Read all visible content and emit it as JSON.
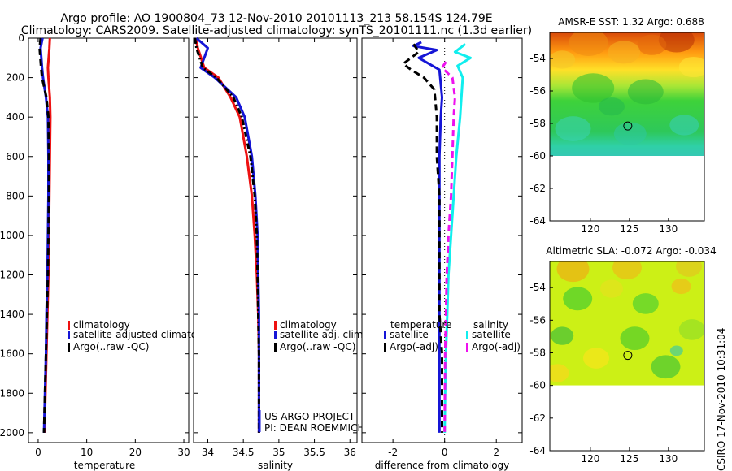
{
  "title": {
    "line1": "Argo profile: AO 1900804_73 12-Nov-2010 20101113_213 58.154S 124.79E",
    "line2": "Climatology: CARS2009. Satellite-adjusted climatology: synTS_20101111.nc (1.3d earlier)"
  },
  "side_stamp": "CSIRO 17-Nov-2010 10:31:04",
  "colors": {
    "climatology": "#ee1111",
    "satellite": "#1515d6",
    "argo": "#000000",
    "salinity_satellite": "#11eeee",
    "salinity_argo": "#ee11ee"
  },
  "chart_data": [
    {
      "type": "line",
      "panel": "temperature",
      "xlabel": "temperature",
      "ylabel": "",
      "xlim": [
        -2,
        31
      ],
      "ylim": [
        2050,
        0
      ],
      "xticks": [
        0,
        10,
        20,
        30
      ],
      "yticks": [
        0,
        200,
        400,
        600,
        800,
        1000,
        1200,
        1400,
        1600,
        1800,
        2000
      ],
      "legend": [
        "climatology",
        "satellite-adjusted climatology",
        "Argo(..raw -QC)"
      ],
      "legend_location": "lower-right",
      "series": [
        {
          "name": "climatology",
          "style": "solid",
          "color": "climatology",
          "x": [
            2.4,
            2.3,
            2.0,
            2.1,
            2.4,
            2.5,
            2.4,
            2.3,
            2.2,
            2.1,
            1.9,
            1.7,
            1.5,
            1.4,
            1.3
          ],
          "y": [
            0,
            50,
            150,
            200,
            300,
            400,
            600,
            800,
            1000,
            1200,
            1400,
            1600,
            1800,
            1900,
            2000
          ]
        },
        {
          "name": "satellite-adjusted climatology",
          "style": "solid",
          "color": "satellite",
          "x": [
            0.9,
            0.5,
            0.8,
            1.0,
            1.6,
            2.0,
            2.1,
            2.1,
            2.0,
            1.9,
            1.7,
            1.6,
            1.4,
            1.3,
            1.2
          ],
          "y": [
            0,
            50,
            150,
            200,
            300,
            400,
            600,
            800,
            1000,
            1200,
            1400,
            1600,
            1800,
            1900,
            2000
          ]
        },
        {
          "name": "Argo(..raw -QC)",
          "style": "dashed",
          "color": "argo",
          "x": [
            0.5,
            0.3,
            0.6,
            0.8,
            1.7,
            2.1,
            2.2,
            2.2,
            2.1,
            2.0,
            1.8,
            1.6,
            1.4,
            1.3,
            1.2
          ],
          "y": [
            0,
            50,
            150,
            200,
            300,
            400,
            600,
            800,
            1000,
            1200,
            1400,
            1600,
            1800,
            1900,
            2000
          ]
        }
      ]
    },
    {
      "type": "line",
      "panel": "salinity",
      "xlabel": "salinity",
      "ylabel": "",
      "xlim": [
        33.8,
        36.1
      ],
      "ylim": [
        2050,
        0
      ],
      "xticks": [
        34,
        34.5,
        35,
        35.5,
        36
      ],
      "xticklabels": [
        "34",
        "34.5",
        "35",
        "35.5",
        "36"
      ],
      "legend": [
        "climatology",
        "satellite adj. clim.",
        "Argo(..raw -QC)"
      ],
      "legend_location": "lower-right",
      "annotation": [
        "US ARGO PROJECT",
        "PI: DEAN ROEMMICH"
      ],
      "series": [
        {
          "name": "climatology",
          "style": "solid",
          "color": "climatology",
          "x": [
            33.83,
            33.86,
            33.95,
            34.15,
            34.32,
            34.45,
            34.55,
            34.62,
            34.66,
            34.69,
            34.71,
            34.72,
            34.72,
            34.72
          ],
          "y": [
            0,
            50,
            150,
            200,
            300,
            400,
            600,
            800,
            1000,
            1200,
            1400,
            1600,
            1800,
            2000
          ]
        },
        {
          "name": "satellite adj. clim.",
          "style": "solid",
          "color": "satellite",
          "x": [
            33.84,
            34.0,
            33.9,
            34.1,
            34.4,
            34.52,
            34.62,
            34.67,
            34.7,
            34.71,
            34.72,
            34.72,
            34.72,
            34.72
          ],
          "y": [
            0,
            50,
            150,
            200,
            300,
            400,
            600,
            800,
            1000,
            1200,
            1400,
            1600,
            1800,
            2000
          ]
        },
        {
          "name": "Argo(..raw -QC)",
          "style": "dashdot",
          "color": "argo",
          "x": [
            33.82,
            33.84,
            33.93,
            34.12,
            34.36,
            34.48,
            34.6,
            34.66,
            34.69,
            34.7,
            34.71,
            34.72,
            34.72,
            34.72
          ],
          "y": [
            0,
            50,
            150,
            200,
            300,
            400,
            600,
            800,
            1000,
            1200,
            1400,
            1600,
            1800,
            2000
          ]
        }
      ]
    },
    {
      "type": "line",
      "panel": "difference",
      "xlabel": "difference from climatology",
      "ylabel": "",
      "xlim": [
        -3.2,
        3.0
      ],
      "ylim": [
        2050,
        0
      ],
      "xticks": [
        -2,
        0,
        2
      ],
      "legend": [
        {
          "header": "temperature",
          "items": [
            "satellite",
            "Argo(-adj)"
          ]
        },
        {
          "header": "salinity",
          "items": [
            "satellite",
            "Argo(-adj)"
          ]
        }
      ],
      "legend_location": "lower-center",
      "series": [
        {
          "name": "satellite",
          "group": "temperature",
          "style": "solid",
          "color": "satellite",
          "x": [
            -0.9,
            -1.2,
            -0.3,
            -1.0,
            -0.2,
            -0.1,
            -0.15,
            -0.2,
            -0.2,
            -0.2,
            -0.2,
            -0.2,
            -0.2,
            -0.2,
            -0.2
          ],
          "y": [
            20,
            40,
            60,
            100,
            160,
            300,
            400,
            600,
            800,
            1000,
            1200,
            1400,
            1600,
            1800,
            2000
          ]
        },
        {
          "name": "Argo(-adj)",
          "group": "temperature",
          "style": "dashed",
          "color": "argo",
          "x": [
            -1.2,
            -1.0,
            -1.6,
            -1.3,
            -0.8,
            -0.4,
            -0.3,
            -0.3,
            -0.2,
            -0.2,
            -0.2,
            -0.2,
            -0.1,
            -0.1
          ],
          "y": [
            30,
            70,
            130,
            160,
            200,
            260,
            400,
            600,
            800,
            1000,
            1200,
            1400,
            1600,
            2000
          ]
        },
        {
          "name": "satellite",
          "group": "salinity",
          "style": "solid",
          "color": "salinity_satellite",
          "x": [
            0.8,
            0.4,
            1.0,
            0.5,
            0.7,
            0.6,
            0.45,
            0.35,
            0.25,
            0.15,
            0.1,
            0.05,
            0.02,
            0.0
          ],
          "y": [
            30,
            70,
            100,
            140,
            200,
            400,
            600,
            800,
            1000,
            1200,
            1400,
            1600,
            1800,
            2000
          ]
        },
        {
          "name": "Argo(-adj)",
          "group": "salinity",
          "style": "dashed",
          "color": "salinity_argo",
          "x": [
            0.05,
            -0.1,
            0.3,
            0.4,
            0.35,
            0.3,
            0.25,
            0.15,
            0.08,
            0.05,
            0.02,
            0.0
          ],
          "y": [
            120,
            150,
            200,
            300,
            400,
            600,
            800,
            1000,
            1200,
            1400,
            1600,
            2000
          ]
        }
      ]
    },
    {
      "type": "heatmap",
      "panel": "sst-map",
      "title": "AMSR-E SST: 1.32 Argo: 0.688",
      "xlim": [
        114.8,
        134.6
      ],
      "ylim": [
        -64,
        -52.4
      ],
      "xticks": [
        120,
        125,
        130
      ],
      "yticks": [
        -54,
        -56,
        -58,
        -60,
        -62,
        -64
      ],
      "valid_south_limit": -60,
      "marker": {
        "lon": 124.79,
        "lat": -58.154
      },
      "band_stops": [
        [
          -52.4,
          "#d94a0a"
        ],
        [
          -53.6,
          "#ff9a10"
        ],
        [
          -54.7,
          "#ffe028"
        ],
        [
          -55.7,
          "#a8e636"
        ],
        [
          -56.6,
          "#3ed23a"
        ],
        [
          -58.5,
          "#2ec85a"
        ],
        [
          -59.4,
          "#2fd0a6"
        ],
        [
          -60,
          "#34c8b2"
        ]
      ]
    },
    {
      "type": "heatmap",
      "panel": "sla-map",
      "title": "Altimetric SLA: -0.072 Argo: -0.034",
      "xlim": [
        114.8,
        134.6
      ],
      "ylim": [
        -64,
        -52.4
      ],
      "xticks": [
        120,
        125,
        130
      ],
      "yticks": [
        -54,
        -56,
        -58,
        -60,
        -62,
        -64
      ],
      "valid_south_limit": -60,
      "marker": {
        "lon": 124.79,
        "lat": -58.154
      },
      "base_color": "#ccf016"
    }
  ]
}
